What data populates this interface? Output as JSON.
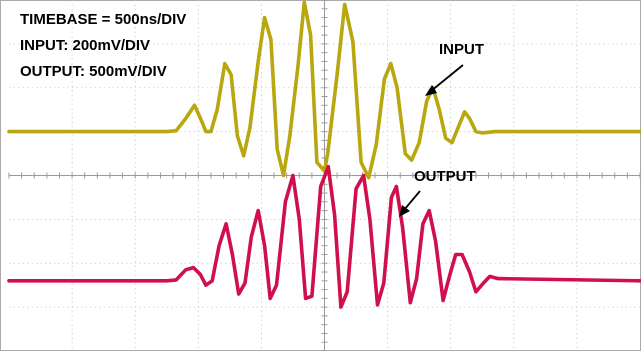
{
  "scope": {
    "settings": [
      "TIMEBASE = 500ns/DIV",
      "INPUT: 200mV/DIV",
      "OUTPUT: 500mV/DIV"
    ],
    "labels": {
      "input": "INPUT",
      "output": "OUTPUT"
    }
  },
  "chart_data": {
    "type": "line",
    "title": "",
    "xlabel": "",
    "ylabel": "",
    "x_unit": "div",
    "y_unit": "div",
    "xlim": [
      0,
      10
    ],
    "ylim": [
      0,
      8
    ],
    "grid": true,
    "series": [
      {
        "name": "INPUT",
        "color": "#b8a70e",
        "points": [
          [
            0.0,
            5.0
          ],
          [
            2.5,
            5.0
          ],
          [
            2.65,
            5.02
          ],
          [
            2.8,
            5.3
          ],
          [
            2.94,
            5.6
          ],
          [
            3.05,
            5.25
          ],
          [
            3.12,
            5.0
          ],
          [
            3.2,
            5.0
          ],
          [
            3.3,
            5.5
          ],
          [
            3.42,
            6.55
          ],
          [
            3.52,
            6.3
          ],
          [
            3.62,
            4.9
          ],
          [
            3.72,
            4.45
          ],
          [
            3.82,
            5.1
          ],
          [
            3.95,
            6.6
          ],
          [
            4.05,
            7.6
          ],
          [
            4.15,
            7.1
          ],
          [
            4.25,
            4.6
          ],
          [
            4.35,
            4.0
          ],
          [
            4.45,
            4.9
          ],
          [
            4.58,
            6.5
          ],
          [
            4.68,
            7.95
          ],
          [
            4.78,
            7.2
          ],
          [
            4.88,
            4.3
          ],
          [
            5.0,
            4.1
          ],
          [
            5.05,
            4.5
          ],
          [
            5.2,
            6.3
          ],
          [
            5.32,
            7.9
          ],
          [
            5.45,
            7.05
          ],
          [
            5.58,
            4.3
          ],
          [
            5.7,
            3.95
          ],
          [
            5.82,
            4.7
          ],
          [
            5.95,
            6.2
          ],
          [
            6.05,
            6.55
          ],
          [
            6.15,
            6.0
          ],
          [
            6.28,
            4.5
          ],
          [
            6.38,
            4.35
          ],
          [
            6.5,
            4.75
          ],
          [
            6.62,
            5.7
          ],
          [
            6.72,
            6.0
          ],
          [
            6.82,
            5.5
          ],
          [
            6.92,
            4.85
          ],
          [
            7.02,
            4.75
          ],
          [
            7.12,
            5.1
          ],
          [
            7.22,
            5.45
          ],
          [
            7.3,
            5.3
          ],
          [
            7.4,
            5.0
          ],
          [
            7.5,
            4.97
          ],
          [
            7.7,
            5.0
          ],
          [
            10.0,
            5.0
          ]
        ]
      },
      {
        "name": "OUTPUT",
        "color": "#d0104c",
        "points": [
          [
            0.0,
            1.6
          ],
          [
            2.5,
            1.6
          ],
          [
            2.65,
            1.62
          ],
          [
            2.8,
            1.85
          ],
          [
            2.92,
            1.9
          ],
          [
            3.03,
            1.75
          ],
          [
            3.12,
            1.5
          ],
          [
            3.22,
            1.6
          ],
          [
            3.33,
            2.4
          ],
          [
            3.44,
            2.9
          ],
          [
            3.54,
            2.2
          ],
          [
            3.64,
            1.3
          ],
          [
            3.74,
            1.55
          ],
          [
            3.84,
            2.6
          ],
          [
            3.95,
            3.2
          ],
          [
            4.05,
            2.4
          ],
          [
            4.14,
            1.2
          ],
          [
            4.24,
            1.5
          ],
          [
            4.38,
            3.4
          ],
          [
            4.5,
            4.0
          ],
          [
            4.6,
            3.0
          ],
          [
            4.7,
            1.2
          ],
          [
            4.8,
            1.25
          ],
          [
            4.94,
            3.75
          ],
          [
            5.06,
            4.2
          ],
          [
            5.16,
            3.1
          ],
          [
            5.26,
            1.0
          ],
          [
            5.36,
            1.35
          ],
          [
            5.5,
            3.7
          ],
          [
            5.62,
            4.0
          ],
          [
            5.72,
            3.0
          ],
          [
            5.84,
            1.05
          ],
          [
            5.94,
            1.55
          ],
          [
            6.06,
            3.5
          ],
          [
            6.14,
            3.75
          ],
          [
            6.24,
            2.8
          ],
          [
            6.36,
            1.1
          ],
          [
            6.46,
            1.65
          ],
          [
            6.56,
            2.9
          ],
          [
            6.66,
            3.2
          ],
          [
            6.76,
            2.5
          ],
          [
            6.88,
            1.15
          ],
          [
            6.98,
            1.7
          ],
          [
            7.08,
            2.2
          ],
          [
            7.18,
            2.2
          ],
          [
            7.3,
            1.8
          ],
          [
            7.4,
            1.35
          ],
          [
            7.52,
            1.55
          ],
          [
            7.62,
            1.7
          ],
          [
            7.75,
            1.65
          ],
          [
            10.0,
            1.6
          ]
        ]
      }
    ]
  }
}
